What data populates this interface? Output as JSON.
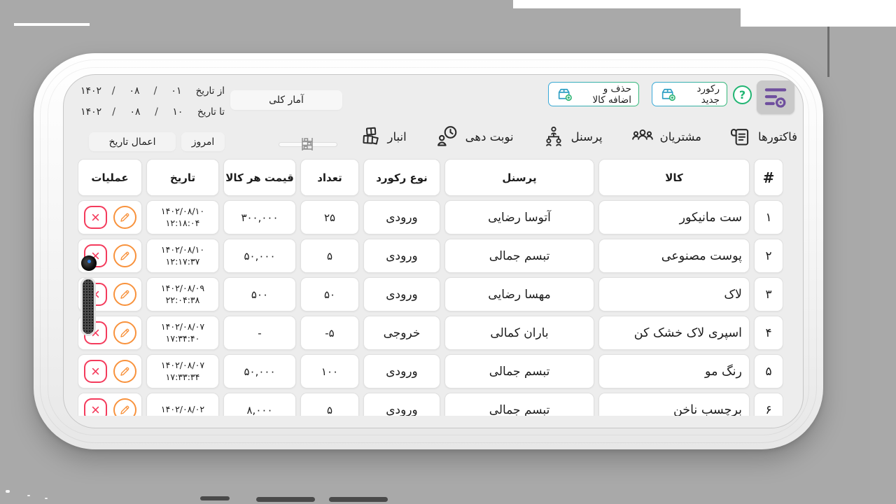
{
  "colors": {
    "accent_blue": "#38a8d8",
    "accent_green": "#35b779",
    "help_green": "#22b573",
    "settings_purple": "#6f4f9e",
    "edit_orange": "#f8923c",
    "delete_red": "#f43b5c",
    "screen_bg": "#ededed"
  },
  "date_filter": {
    "from_label": "از تاریخ",
    "to_label": "تا تاریخ",
    "separator": "/",
    "from": {
      "day": "۰۱",
      "month": "۰۸",
      "year": "۱۴۰۲"
    },
    "to": {
      "day": "۱۰",
      "month": "۰۸",
      "year": "۱۴۰۲"
    },
    "stats_button": "آمار کلی",
    "today_button": "امروز",
    "apply_button": "اعمال تاریخ"
  },
  "actions": {
    "add_remove_product": "حذف و اضافه کالا",
    "new_record": "رکورد جدید",
    "help": "?"
  },
  "nav": [
    {
      "id": "invoices",
      "label": "فاکتورها"
    },
    {
      "id": "customers",
      "label": "مشتریان"
    },
    {
      "id": "staff",
      "label": "پرسنل"
    },
    {
      "id": "appointments",
      "label": "نوبت دهی"
    },
    {
      "id": "warehouse",
      "label": "انبار"
    }
  ],
  "table": {
    "headers": [
      "#",
      "کالا",
      "پرسنل",
      "نوع رکورد",
      "تعداد",
      "قیمت هر کالا",
      "تاریخ",
      "عملیات"
    ],
    "rows": [
      {
        "num": "۱",
        "product": "ست مانیکور",
        "person": "آتوسا رضایی",
        "type": "ورودی",
        "qty": "۲۵",
        "price": "۳۰۰,۰۰۰",
        "date": "۱۴۰۲/۰۸/۱۰",
        "time": "۱۲:۱۸:۰۴"
      },
      {
        "num": "۲",
        "product": "پوست مصنوعی",
        "person": "تبسم جمالی",
        "type": "ورودی",
        "qty": "۵",
        "price": "۵۰,۰۰۰",
        "date": "۱۴۰۲/۰۸/۱۰",
        "time": "۱۲:۱۷:۳۷"
      },
      {
        "num": "۳",
        "product": "لاک",
        "person": "مهسا رضایی",
        "type": "ورودی",
        "qty": "۵۰",
        "price": "۵۰۰",
        "date": "۱۴۰۲/۰۸/۰۹",
        "time": "۲۲:۰۴:۳۸"
      },
      {
        "num": "۴",
        "product": "اسپری لاک خشک کن",
        "person": "باران کمالی",
        "type": "خروجی",
        "qty": "-۵",
        "price": "-",
        "date": "۱۴۰۲/۰۸/۰۷",
        "time": "۱۷:۳۴:۴۰"
      },
      {
        "num": "۵",
        "product": "رنگ مو",
        "person": "تبسم جمالی",
        "type": "ورودی",
        "qty": "۱۰۰",
        "price": "۵۰,۰۰۰",
        "date": "۱۴۰۲/۰۸/۰۷",
        "time": "۱۷:۳۳:۳۴"
      },
      {
        "num": "۶",
        "product": "برچسب ناخن",
        "person": "تبسم جمالی",
        "type": "ورودی",
        "qty": "۵",
        "price": "۸,۰۰۰",
        "date": "۱۴۰۲/۰۸/۰۲",
        "time": ""
      }
    ]
  }
}
